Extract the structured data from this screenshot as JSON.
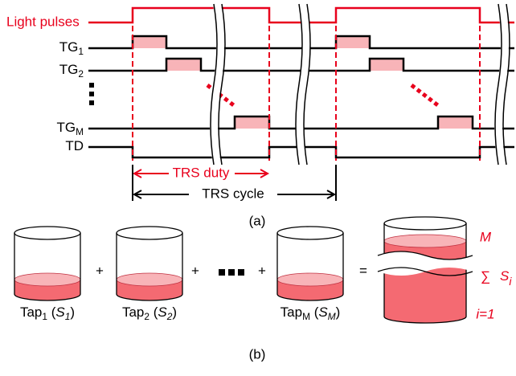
{
  "diagram": {
    "light_label": "Light pulses",
    "signals": [
      {
        "label": [
          {
            "text": "TG"
          },
          {
            "text": "1",
            "sub": true
          }
        ]
      },
      {
        "label": [
          {
            "text": "TG"
          },
          {
            "text": "2",
            "sub": true
          }
        ]
      },
      {
        "label": [
          {
            "text": "TG"
          },
          {
            "text": "M",
            "sub": true
          }
        ]
      },
      {
        "label": [
          {
            "text": "TD"
          }
        ]
      }
    ],
    "trs_duty": "TRS duty",
    "trs_cycle": "TRS cycle",
    "caption_a": "(a)",
    "taps": [
      {
        "label": [
          {
            "text": "Tap"
          },
          {
            "text": "1",
            "sub": true
          },
          {
            "text": " ("
          },
          {
            "text": "S",
            "italic": true
          },
          {
            "text": "1",
            "sub": true,
            "italic": true
          },
          {
            "text": ")"
          }
        ]
      },
      {
        "label": [
          {
            "text": "Tap"
          },
          {
            "text": "2",
            "sub": true
          },
          {
            "text": " ("
          },
          {
            "text": "S",
            "italic": true
          },
          {
            "text": "2",
            "sub": true,
            "italic": true
          },
          {
            "text": ")"
          }
        ]
      },
      {
        "label": [
          {
            "text": "Tap"
          },
          {
            "text": "M",
            "sub": true
          },
          {
            "text": " ("
          },
          {
            "text": "S",
            "italic": true
          },
          {
            "text": "M",
            "sub": true,
            "italic": true
          },
          {
            "text": ")"
          }
        ]
      }
    ],
    "operators": [
      "+",
      "+",
      "+",
      "="
    ],
    "sum": {
      "symbol": "∑",
      "upper": "M",
      "lower": "i=1",
      "term": [
        {
          "text": "S",
          "italic": true
        },
        {
          "text": "i",
          "sub": true,
          "italic": true
        }
      ]
    },
    "caption_b": "(b)"
  }
}
